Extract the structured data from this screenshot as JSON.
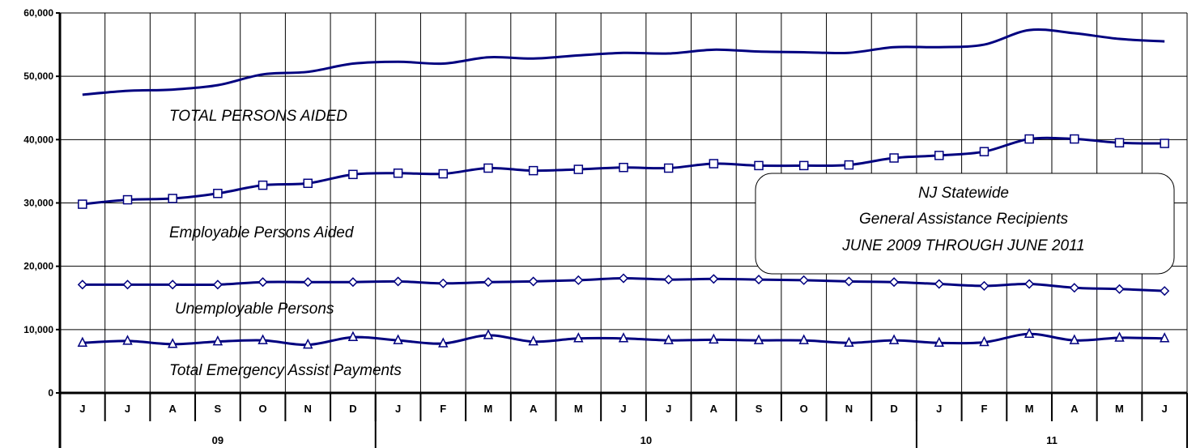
{
  "chart_data": {
    "type": "line",
    "title_lines": [
      "NJ Statewide",
      "General Assistance Recipients",
      "JUNE 2009 THROUGH JUNE 2011"
    ],
    "xlabel": "",
    "ylabel": "",
    "ylim": [
      0,
      60000
    ],
    "yticks": [
      0,
      10000,
      20000,
      30000,
      40000,
      50000,
      60000
    ],
    "ytick_labels": [
      "0",
      "10,000",
      "20,000",
      "30,000",
      "40,000",
      "50,000",
      "60,000"
    ],
    "grid": true,
    "categories": [
      "J",
      "J",
      "A",
      "S",
      "O",
      "N",
      "D",
      "J",
      "F",
      "M",
      "A",
      "M",
      "J",
      "J",
      "A",
      "S",
      "O",
      "N",
      "D",
      "J",
      "F",
      "M",
      "A",
      "M",
      "J"
    ],
    "year_groups": [
      {
        "label": "09",
        "count": 7
      },
      {
        "label": "10",
        "count": 12
      },
      {
        "label": "11",
        "count": 6
      }
    ],
    "series": [
      {
        "name": "TOTAL PERSONS AIDED",
        "marker": "none",
        "color": "#00007f",
        "values": [
          47100,
          47700,
          47900,
          48600,
          50300,
          50700,
          52000,
          52300,
          52000,
          53000,
          52800,
          53300,
          53700,
          53600,
          54200,
          53900,
          53800,
          53700,
          54600,
          54600,
          55000,
          57300,
          56800,
          55900,
          55500
        ]
      },
      {
        "name": "Employable Persons Aided",
        "marker": "square",
        "color": "#00007f",
        "values": [
          29800,
          30500,
          30700,
          31500,
          32800,
          33100,
          34500,
          34700,
          34600,
          35500,
          35100,
          35300,
          35600,
          35500,
          36200,
          35900,
          35900,
          36000,
          37100,
          37500,
          38100,
          40100,
          40100,
          39500,
          39400
        ]
      },
      {
        "name": "Unemployable Persons",
        "marker": "diamond",
        "color": "#00007f",
        "values": [
          17100,
          17100,
          17100,
          17100,
          17500,
          17500,
          17500,
          17600,
          17300,
          17500,
          17600,
          17800,
          18100,
          17900,
          18000,
          17900,
          17800,
          17600,
          17500,
          17200,
          16900,
          17200,
          16600,
          16400,
          16100
        ]
      },
      {
        "name": "Total Emergency Assist Payments",
        "marker": "triangle",
        "color": "#00007f",
        "values": [
          7900,
          8200,
          7700,
          8100,
          8300,
          7600,
          8800,
          8300,
          7800,
          9100,
          8100,
          8600,
          8600,
          8300,
          8400,
          8300,
          8300,
          7900,
          8300,
          7900,
          8000,
          9300,
          8300,
          8700,
          8600
        ]
      }
    ]
  }
}
